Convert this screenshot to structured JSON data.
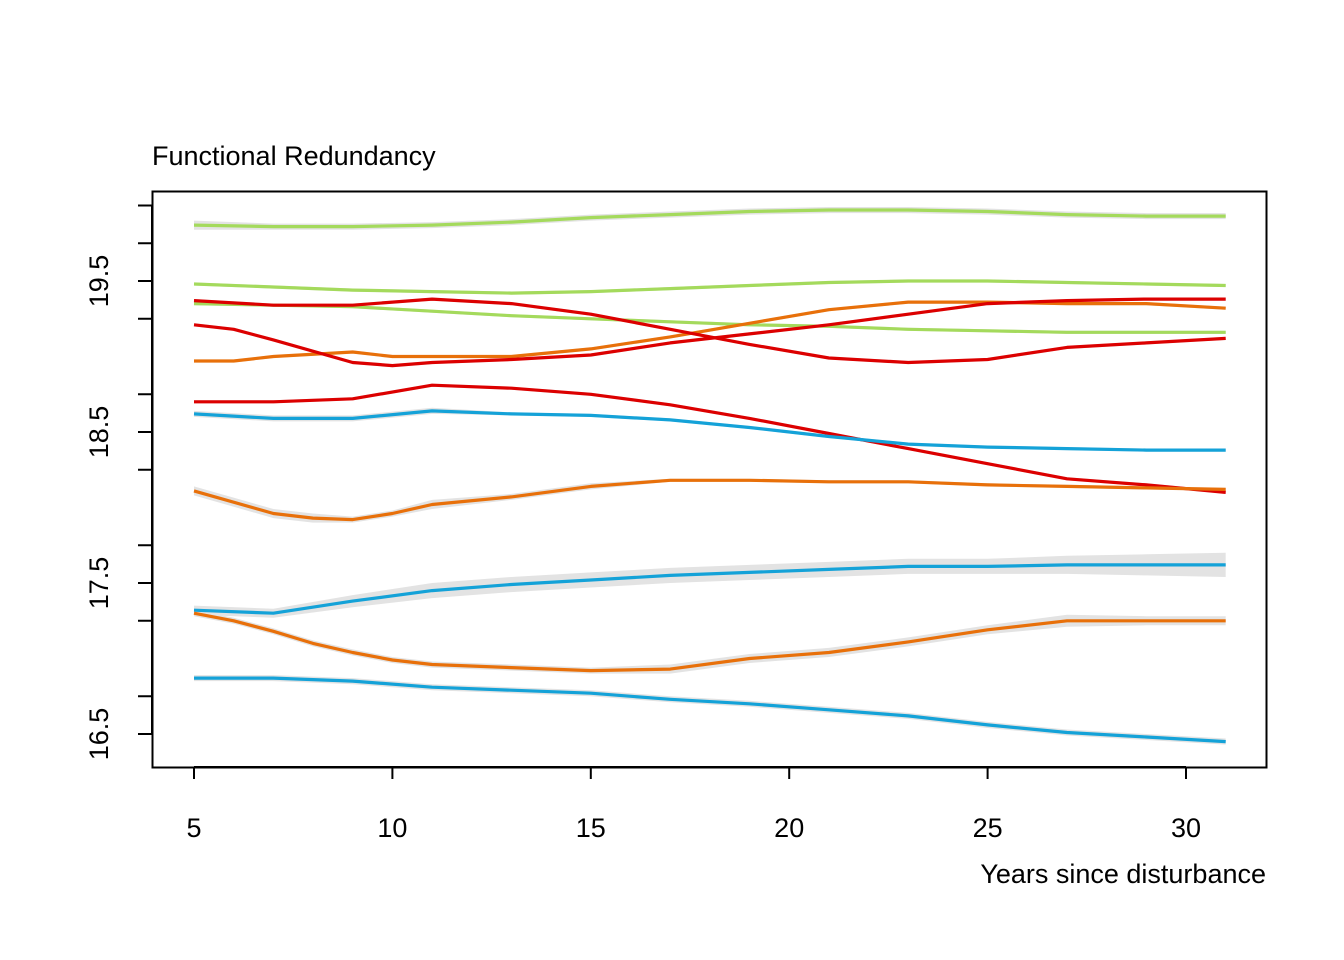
{
  "chart_data": {
    "type": "line",
    "title": "Functional Redundancy",
    "xlabel": "Years since disturbance",
    "ylabel": "",
    "xlim": [
      4,
      32
    ],
    "ylim": [
      16.3,
      20.3
    ],
    "x_ticks": [
      "5",
      "10",
      "15",
      "20",
      "25",
      "30"
    ],
    "y_ticks": [
      "16.5",
      "17.5",
      "18.5",
      "19.5"
    ],
    "y_minor_ticks": [
      16.75,
      17.25,
      17.75,
      18.25,
      18.75,
      19.25,
      19.75,
      20.0
    ],
    "confidence_band": true,
    "band_color": "#e3e3e3",
    "legend": "none",
    "grid": false,
    "series": [
      {
        "color": "#a4da5c",
        "x": [
          5,
          7,
          9,
          11,
          13,
          15,
          17,
          19,
          21,
          23,
          25,
          27,
          29,
          31
        ],
        "y": [
          19.87,
          19.86,
          19.86,
          19.87,
          19.89,
          19.92,
          19.94,
          19.96,
          19.97,
          19.97,
          19.96,
          19.94,
          19.93,
          19.93
        ],
        "band": [
          0.03,
          0.02,
          0.02,
          0.02,
          0.02,
          0.02,
          0.02,
          0.02,
          0.02,
          0.02,
          0.02,
          0.02,
          0.02,
          0.02
        ]
      },
      {
        "color": "#a4da5c",
        "x": [
          5,
          7,
          9,
          11,
          13,
          15,
          17,
          19,
          21,
          23,
          25,
          27,
          29,
          31
        ],
        "y": [
          19.48,
          19.46,
          19.44,
          19.43,
          19.42,
          19.43,
          19.45,
          19.47,
          19.49,
          19.5,
          19.5,
          19.49,
          19.48,
          19.47
        ],
        "band": [
          0.01,
          0.01,
          0.01,
          0.01,
          0.01,
          0.01,
          0.01,
          0.01,
          0.01,
          0.01,
          0.01,
          0.01,
          0.01,
          0.01
        ]
      },
      {
        "color": "#a4da5c",
        "x": [
          5,
          7,
          9,
          11,
          13,
          15,
          17,
          19,
          21,
          23,
          25,
          27,
          29,
          31
        ],
        "y": [
          19.35,
          19.34,
          19.33,
          19.3,
          19.27,
          19.25,
          19.23,
          19.21,
          19.2,
          19.18,
          19.17,
          19.16,
          19.16,
          19.16
        ],
        "band": [
          0.01,
          0.01,
          0.01,
          0.01,
          0.01,
          0.01,
          0.01,
          0.01,
          0.01,
          0.01,
          0.01,
          0.01,
          0.01,
          0.01
        ]
      },
      {
        "color": "#e8700a",
        "x": [
          5,
          6,
          7,
          9,
          10,
          11,
          13,
          15,
          17,
          19,
          21,
          23,
          25,
          27,
          29,
          31
        ],
        "y": [
          18.97,
          18.97,
          19.0,
          19.03,
          19.0,
          19.0,
          19.0,
          19.05,
          19.13,
          19.22,
          19.31,
          19.36,
          19.36,
          19.35,
          19.35,
          19.32
        ],
        "band": [
          0.01,
          0.01,
          0.01,
          0.01,
          0.01,
          0.01,
          0.01,
          0.01,
          0.01,
          0.01,
          0.01,
          0.01,
          0.01,
          0.01,
          0.01,
          0.01
        ]
      },
      {
        "color": "#dc0000",
        "x": [
          5,
          7,
          9,
          11,
          13,
          15,
          17,
          19,
          21,
          23,
          25,
          27,
          29,
          31
        ],
        "y": [
          19.37,
          19.34,
          19.34,
          19.38,
          19.35,
          19.28,
          19.18,
          19.08,
          18.99,
          18.96,
          18.98,
          19.06,
          19.09,
          19.12
        ],
        "band": [
          0.01,
          0.01,
          0.01,
          0.01,
          0.01,
          0.01,
          0.01,
          0.01,
          0.01,
          0.01,
          0.01,
          0.01,
          0.01,
          0.01
        ]
      },
      {
        "color": "#dc0000",
        "x": [
          5,
          6,
          7,
          9,
          10,
          11,
          13,
          15,
          17,
          19,
          21,
          23,
          25,
          27,
          29,
          31
        ],
        "y": [
          19.21,
          19.18,
          19.11,
          18.96,
          18.94,
          18.96,
          18.98,
          19.01,
          19.09,
          19.15,
          19.21,
          19.28,
          19.35,
          19.37,
          19.38,
          19.38
        ],
        "band": [
          0.01,
          0.01,
          0.01,
          0.01,
          0.01,
          0.01,
          0.01,
          0.01,
          0.01,
          0.01,
          0.01,
          0.01,
          0.01,
          0.01,
          0.01,
          0.01
        ]
      },
      {
        "color": "#dc0000",
        "x": [
          5,
          7,
          9,
          11,
          13,
          15,
          17,
          19,
          21,
          23,
          25,
          27,
          29,
          31
        ],
        "y": [
          18.7,
          18.7,
          18.72,
          18.81,
          18.79,
          18.75,
          18.68,
          18.59,
          18.49,
          18.39,
          18.29,
          18.19,
          18.15,
          18.1
        ],
        "band": [
          0.01,
          0.01,
          0.01,
          0.01,
          0.01,
          0.01,
          0.01,
          0.01,
          0.01,
          0.01,
          0.01,
          0.01,
          0.01,
          0.01
        ]
      },
      {
        "color": "#14a2d8",
        "x": [
          5,
          7,
          9,
          11,
          13,
          15,
          17,
          19,
          21,
          23,
          25,
          27,
          29,
          31
        ],
        "y": [
          18.62,
          18.59,
          18.59,
          18.64,
          18.62,
          18.61,
          18.58,
          18.53,
          18.47,
          18.42,
          18.4,
          18.39,
          18.38,
          18.38
        ],
        "band": [
          0.02,
          0.02,
          0.02,
          0.02,
          0.01,
          0.01,
          0.01,
          0.01,
          0.01,
          0.01,
          0.01,
          0.01,
          0.01,
          0.01
        ]
      },
      {
        "color": "#e8700a",
        "x": [
          5,
          7,
          8,
          9,
          10,
          11,
          13,
          15,
          17,
          19,
          21,
          23,
          25,
          27,
          29,
          31
        ],
        "y": [
          18.11,
          17.96,
          17.93,
          17.92,
          17.96,
          18.02,
          18.07,
          18.14,
          18.18,
          18.18,
          18.17,
          18.17,
          18.15,
          18.14,
          18.13,
          18.12
        ],
        "band": [
          0.03,
          0.03,
          0.03,
          0.02,
          0.02,
          0.03,
          0.02,
          0.02,
          0.01,
          0.01,
          0.01,
          0.01,
          0.01,
          0.01,
          0.01,
          0.01
        ]
      },
      {
        "color": "#14a2d8",
        "x": [
          5,
          7,
          9,
          11,
          13,
          15,
          17,
          19,
          21,
          23,
          25,
          27,
          29,
          31
        ],
        "y": [
          17.32,
          17.3,
          17.38,
          17.45,
          17.49,
          17.52,
          17.55,
          17.57,
          17.59,
          17.61,
          17.61,
          17.62,
          17.62,
          17.62
        ],
        "band": [
          0.03,
          0.03,
          0.04,
          0.05,
          0.05,
          0.05,
          0.05,
          0.05,
          0.05,
          0.05,
          0.05,
          0.06,
          0.07,
          0.08
        ]
      },
      {
        "color": "#e8700a",
        "x": [
          5,
          6,
          7,
          8,
          9,
          10,
          11,
          13,
          15,
          17,
          19,
          21,
          23,
          25,
          27,
          29,
          31
        ],
        "y": [
          17.3,
          17.25,
          17.18,
          17.1,
          17.04,
          16.99,
          16.96,
          16.94,
          16.92,
          16.93,
          17.0,
          17.04,
          17.11,
          17.19,
          17.25,
          17.25,
          17.25
        ],
        "band": [
          0.02,
          0.02,
          0.02,
          0.02,
          0.02,
          0.02,
          0.02,
          0.02,
          0.02,
          0.03,
          0.03,
          0.03,
          0.03,
          0.03,
          0.04,
          0.03,
          0.03
        ]
      },
      {
        "color": "#14a2d8",
        "x": [
          5,
          7,
          9,
          11,
          13,
          15,
          17,
          19,
          21,
          23,
          25,
          27,
          29,
          31
        ],
        "y": [
          16.87,
          16.87,
          16.85,
          16.81,
          16.79,
          16.77,
          16.73,
          16.7,
          16.66,
          16.62,
          16.56,
          16.51,
          16.48,
          16.45
        ],
        "band": [
          0.02,
          0.02,
          0.02,
          0.02,
          0.02,
          0.02,
          0.02,
          0.02,
          0.02,
          0.02,
          0.02,
          0.02,
          0.02,
          0.02
        ]
      }
    ]
  }
}
